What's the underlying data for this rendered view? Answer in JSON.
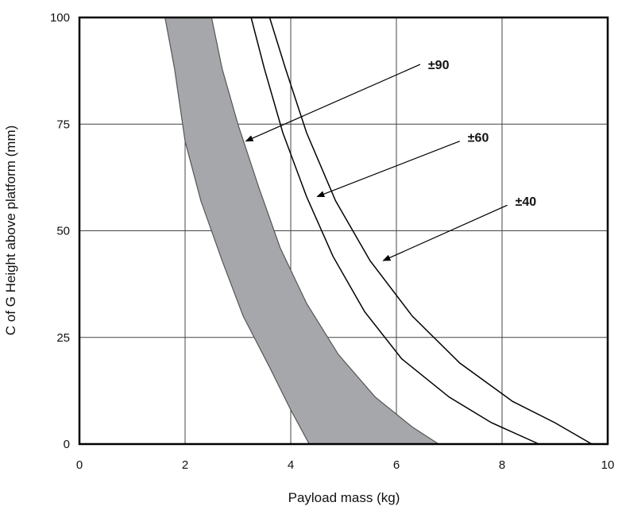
{
  "chart_data": {
    "type": "line",
    "title": "",
    "xlabel": "Payload mass (kg)",
    "ylabel": "C of G Height above platform (mm)",
    "xlim": [
      0,
      10
    ],
    "ylim": [
      0,
      100
    ],
    "x_ticks": [
      "0",
      "2",
      "4",
      "6",
      "8",
      "10"
    ],
    "y_ticks": [
      "0",
      "25",
      "50",
      "75",
      "100"
    ],
    "grid": true,
    "band": {
      "fill": "#a6a7ab",
      "left_edge": [
        [
          1.62,
          100
        ],
        [
          1.8,
          88
        ],
        [
          2.0,
          71
        ],
        [
          2.3,
          57
        ],
        [
          2.7,
          43
        ],
        [
          3.1,
          30
        ],
        [
          3.6,
          18
        ],
        [
          4.0,
          8
        ],
        [
          4.35,
          0
        ]
      ],
      "right_edge": [
        [
          2.5,
          100
        ],
        [
          2.7,
          88
        ],
        [
          3.0,
          75
        ],
        [
          3.4,
          60
        ],
        [
          3.8,
          46
        ],
        [
          4.3,
          33
        ],
        [
          4.9,
          21
        ],
        [
          5.6,
          11
        ],
        [
          6.3,
          4
        ],
        [
          6.8,
          0
        ]
      ]
    },
    "series": [
      {
        "values": [
          [
            3.25,
            100
          ],
          [
            3.5,
            88
          ],
          [
            3.85,
            73
          ],
          [
            4.3,
            58
          ],
          [
            4.8,
            44
          ],
          [
            5.4,
            31
          ],
          [
            6.1,
            20
          ],
          [
            7.0,
            11
          ],
          [
            7.8,
            5
          ],
          [
            8.7,
            0
          ]
        ]
      },
      {
        "values": [
          [
            3.6,
            100
          ],
          [
            3.9,
            88
          ],
          [
            4.3,
            73
          ],
          [
            4.85,
            57
          ],
          [
            5.5,
            43
          ],
          [
            6.3,
            30
          ],
          [
            7.2,
            19
          ],
          [
            8.2,
            10
          ],
          [
            9.0,
            5
          ],
          [
            9.7,
            0
          ]
        ]
      }
    ],
    "annotations": [
      {
        "label": "±90",
        "text_at": [
          6.6,
          89
        ],
        "arrow_from": [
          6.45,
          89
        ],
        "arrow_to": [
          3.15,
          71
        ]
      },
      {
        "label": "±60",
        "text_at": [
          7.35,
          72
        ],
        "arrow_from": [
          7.2,
          71
        ],
        "arrow_to": [
          4.5,
          58
        ]
      },
      {
        "label": "±40",
        "text_at": [
          8.25,
          57
        ],
        "arrow_from": [
          8.1,
          56
        ],
        "arrow_to": [
          5.75,
          43
        ]
      }
    ],
    "colors": {
      "grid": "#444444",
      "line": "#000000",
      "band_stroke": "#555555"
    }
  }
}
